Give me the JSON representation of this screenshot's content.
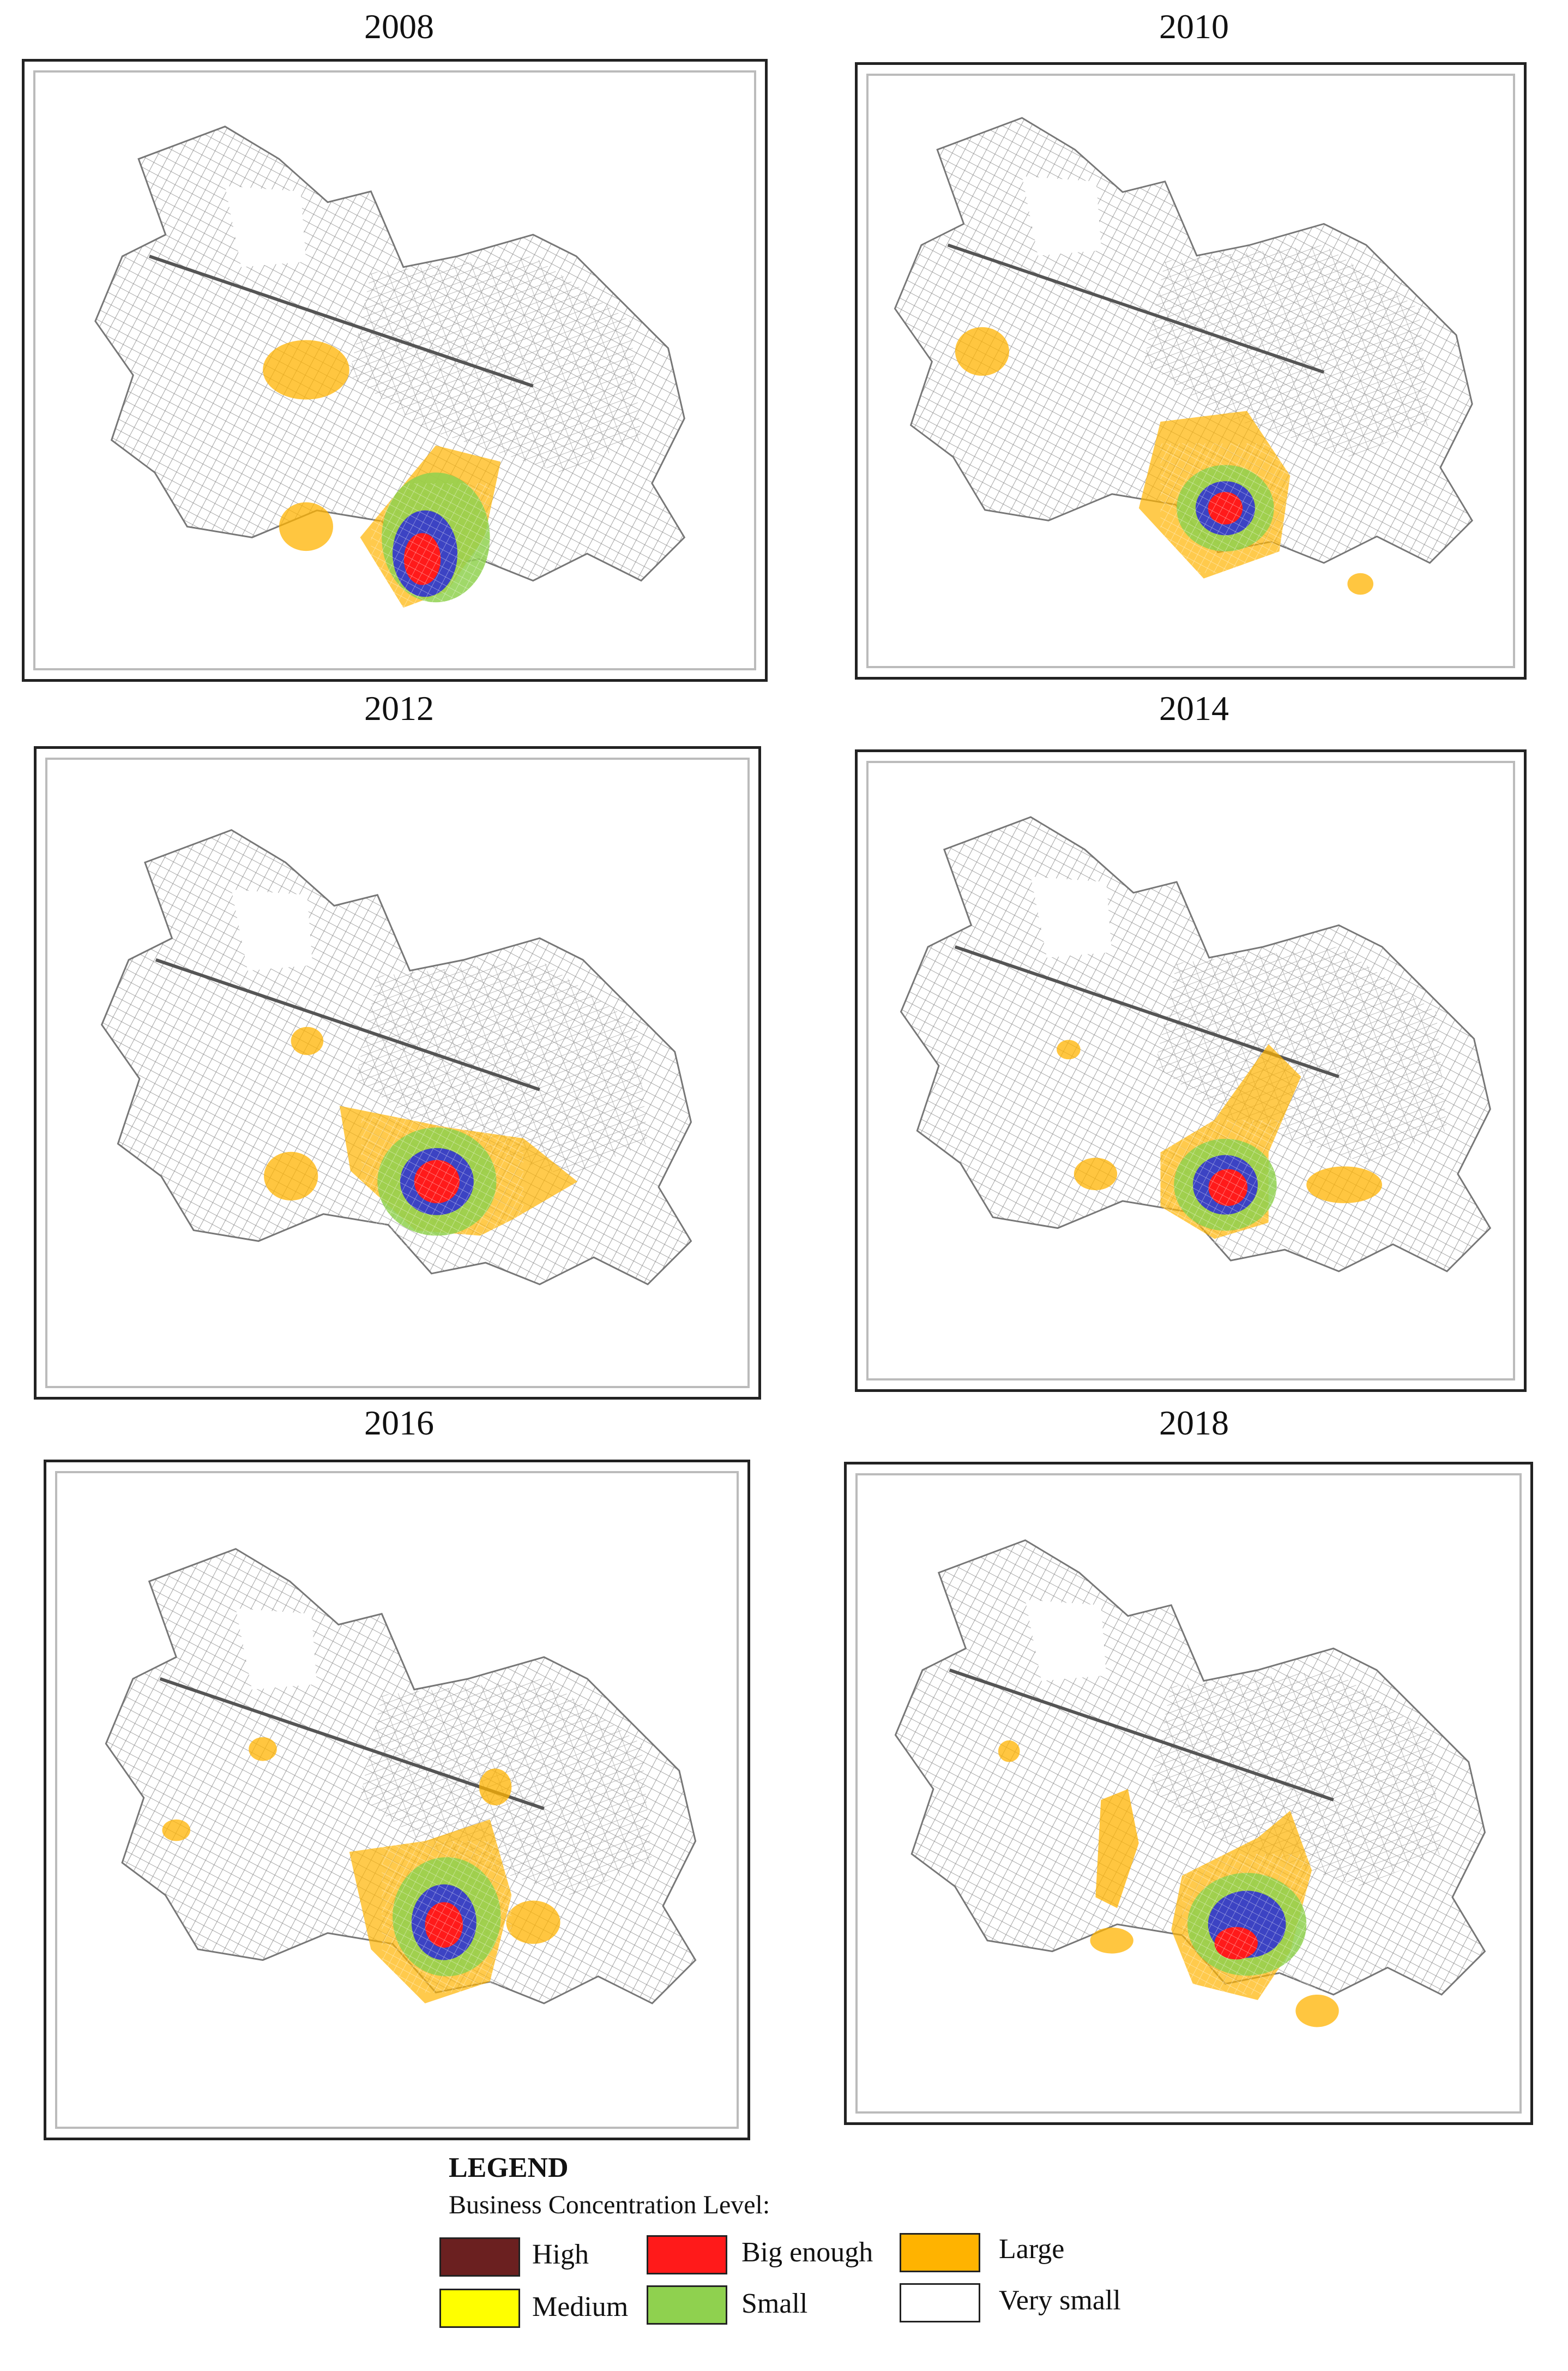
{
  "maps": [
    {
      "year": "2008"
    },
    {
      "year": "2010"
    },
    {
      "year": "2012"
    },
    {
      "year": "2014"
    },
    {
      "year": "2016"
    },
    {
      "year": "2018"
    }
  ],
  "legend": {
    "title": "LEGEND",
    "subtitle": "Business Concentration Level:",
    "items": [
      {
        "label": "High",
        "color": "#6b2020"
      },
      {
        "label": "Big enough",
        "color": "#ff1a1a"
      },
      {
        "label": "Large",
        "color": "#ffb300"
      },
      {
        "label": "Medium",
        "color": "#ffff00"
      },
      {
        "label": "Small",
        "color": "#8fd14f"
      },
      {
        "label": "Very small",
        "color": "#ffffff"
      }
    ]
  }
}
